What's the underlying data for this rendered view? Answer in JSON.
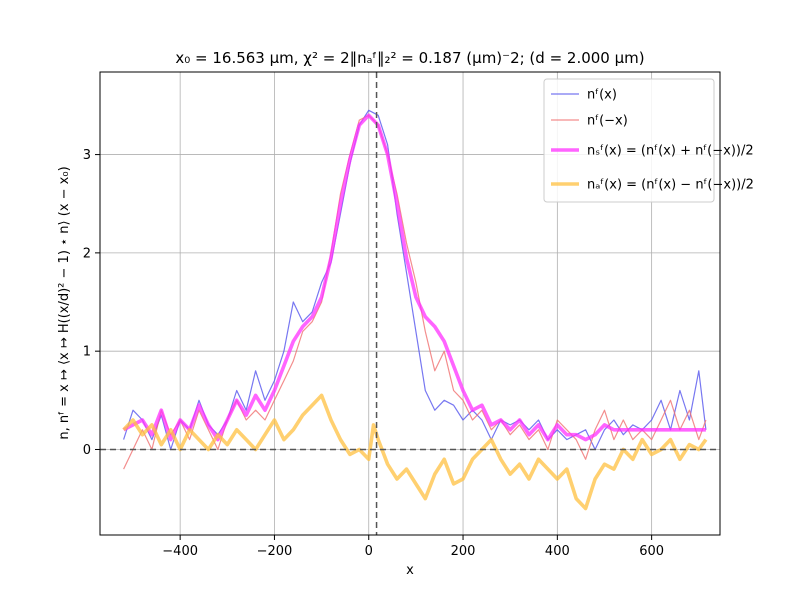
{
  "chart_data": {
    "type": "line",
    "title": "x₀ = 16.563 μm,  χ² = 2‖nₐᶠ‖₂² = 0.187 (μm)⁻2;    (d = 2.000 μm)",
    "xlabel": "x",
    "ylabel": "n,   nᶠ = x ↦ ⟨x ↦ H((x/d)² − 1) ⋆ n⟩ (x − x₀)",
    "xlim": [
      -570,
      745
    ],
    "ylim": [
      -0.87,
      3.84
    ],
    "x_ticks": [
      -400,
      -200,
      0,
      200,
      400,
      600
    ],
    "x_tick_labels": [
      "−400",
      "−200",
      "0",
      "200",
      "400",
      "600"
    ],
    "y_ticks": [
      0,
      1,
      2,
      3
    ],
    "y_tick_labels": [
      "0",
      "1",
      "2",
      "3"
    ],
    "grid": true,
    "legend_position": "top-right",
    "reference_lines": {
      "vertical_x": 16.563,
      "horizontal_y": 0
    },
    "series": [
      {
        "name": "nᶠ(x)",
        "color": "#5555ee",
        "points": [
          [
            -520,
            0.1
          ],
          [
            -500,
            0.4
          ],
          [
            -480,
            0.3
          ],
          [
            -460,
            0.1
          ],
          [
            -440,
            0.35
          ],
          [
            -420,
            0.0
          ],
          [
            -400,
            0.3
          ],
          [
            -380,
            0.2
          ],
          [
            -360,
            0.5
          ],
          [
            -340,
            0.25
          ],
          [
            -320,
            0.15
          ],
          [
            -300,
            0.3
          ],
          [
            -280,
            0.6
          ],
          [
            -260,
            0.4
          ],
          [
            -240,
            0.8
          ],
          [
            -220,
            0.5
          ],
          [
            -200,
            0.7
          ],
          [
            -180,
            1.0
          ],
          [
            -160,
            1.5
          ],
          [
            -140,
            1.3
          ],
          [
            -120,
            1.4
          ],
          [
            -100,
            1.7
          ],
          [
            -80,
            1.9
          ],
          [
            -60,
            2.4
          ],
          [
            -40,
            2.9
          ],
          [
            -20,
            3.3
          ],
          [
            0,
            3.45
          ],
          [
            20,
            3.4
          ],
          [
            40,
            3.1
          ],
          [
            60,
            2.4
          ],
          [
            80,
            1.8
          ],
          [
            100,
            1.2
          ],
          [
            120,
            0.6
          ],
          [
            140,
            0.4
          ],
          [
            160,
            0.5
          ],
          [
            180,
            0.45
          ],
          [
            200,
            0.3
          ],
          [
            220,
            0.4
          ],
          [
            240,
            0.3
          ],
          [
            260,
            0.1
          ],
          [
            280,
            0.3
          ],
          [
            300,
            0.25
          ],
          [
            320,
            0.3
          ],
          [
            340,
            0.2
          ],
          [
            360,
            0.3
          ],
          [
            380,
            0.1
          ],
          [
            400,
            0.2
          ],
          [
            420,
            0.1
          ],
          [
            440,
            0.15
          ],
          [
            460,
            0.2
          ],
          [
            480,
            0.0
          ],
          [
            500,
            0.2
          ],
          [
            520,
            0.3
          ],
          [
            540,
            0.15
          ],
          [
            560,
            0.25
          ],
          [
            580,
            0.2
          ],
          [
            600,
            0.3
          ],
          [
            620,
            0.5
          ],
          [
            640,
            0.2
          ],
          [
            660,
            0.6
          ],
          [
            680,
            0.3
          ],
          [
            700,
            0.8
          ],
          [
            715,
            0.2
          ]
        ]
      },
      {
        "name": "nᶠ(−x)",
        "color": "#f07070",
        "points": [
          [
            -520,
            -0.2
          ],
          [
            -500,
            0.0
          ],
          [
            -480,
            0.2
          ],
          [
            -460,
            0.0
          ],
          [
            -440,
            0.4
          ],
          [
            -420,
            0.15
          ],
          [
            -400,
            0.3
          ],
          [
            -380,
            0.1
          ],
          [
            -360,
            0.4
          ],
          [
            -340,
            0.2
          ],
          [
            -320,
            0.0
          ],
          [
            -300,
            0.3
          ],
          [
            -280,
            0.5
          ],
          [
            -260,
            0.3
          ],
          [
            -240,
            0.4
          ],
          [
            -220,
            0.3
          ],
          [
            -200,
            0.5
          ],
          [
            -180,
            0.7
          ],
          [
            -160,
            0.9
          ],
          [
            -140,
            1.2
          ],
          [
            -120,
            1.3
          ],
          [
            -100,
            1.5
          ],
          [
            -80,
            2.0
          ],
          [
            -60,
            2.6
          ],
          [
            -40,
            3.0
          ],
          [
            -20,
            3.35
          ],
          [
            0,
            3.4
          ],
          [
            20,
            3.3
          ],
          [
            40,
            3.0
          ],
          [
            60,
            2.6
          ],
          [
            80,
            2.1
          ],
          [
            100,
            1.7
          ],
          [
            120,
            1.2
          ],
          [
            140,
            0.8
          ],
          [
            160,
            1.0
          ],
          [
            180,
            0.6
          ],
          [
            200,
            0.5
          ],
          [
            220,
            0.3
          ],
          [
            240,
            0.4
          ],
          [
            260,
            0.2
          ],
          [
            280,
            0.3
          ],
          [
            300,
            0.15
          ],
          [
            320,
            0.25
          ],
          [
            340,
            0.1
          ],
          [
            360,
            0.2
          ],
          [
            380,
            0.0
          ],
          [
            400,
            0.3
          ],
          [
            420,
            0.2
          ],
          [
            440,
            0.1
          ],
          [
            460,
            -0.1
          ],
          [
            480,
            0.2
          ],
          [
            500,
            0.4
          ],
          [
            520,
            0.1
          ],
          [
            540,
            0.3
          ],
          [
            560,
            0.1
          ],
          [
            580,
            0.2
          ],
          [
            600,
            0.1
          ],
          [
            620,
            0.3
          ],
          [
            640,
            0.5
          ],
          [
            660,
            0.2
          ],
          [
            680,
            0.4
          ],
          [
            700,
            0.1
          ],
          [
            715,
            0.3
          ]
        ]
      },
      {
        "name": "nₛᶠ(x) = (nᶠ(x) + nᶠ(−x))/2",
        "color": "#ff30ff",
        "points": [
          [
            -520,
            0.2
          ],
          [
            -500,
            0.25
          ],
          [
            -480,
            0.3
          ],
          [
            -460,
            0.15
          ],
          [
            -440,
            0.4
          ],
          [
            -420,
            0.1
          ],
          [
            -400,
            0.3
          ],
          [
            -380,
            0.2
          ],
          [
            -360,
            0.45
          ],
          [
            -340,
            0.25
          ],
          [
            -320,
            0.1
          ],
          [
            -300,
            0.3
          ],
          [
            -280,
            0.5
          ],
          [
            -260,
            0.35
          ],
          [
            -240,
            0.55
          ],
          [
            -220,
            0.4
          ],
          [
            -200,
            0.6
          ],
          [
            -180,
            0.85
          ],
          [
            -160,
            1.1
          ],
          [
            -140,
            1.25
          ],
          [
            -120,
            1.35
          ],
          [
            -100,
            1.55
          ],
          [
            -80,
            1.95
          ],
          [
            -60,
            2.5
          ],
          [
            -40,
            2.95
          ],
          [
            -20,
            3.3
          ],
          [
            0,
            3.4
          ],
          [
            20,
            3.3
          ],
          [
            40,
            3.0
          ],
          [
            60,
            2.5
          ],
          [
            80,
            1.95
          ],
          [
            100,
            1.55
          ],
          [
            120,
            1.35
          ],
          [
            140,
            1.25
          ],
          [
            160,
            1.1
          ],
          [
            180,
            0.85
          ],
          [
            200,
            0.6
          ],
          [
            220,
            0.4
          ],
          [
            240,
            0.45
          ],
          [
            260,
            0.25
          ],
          [
            280,
            0.3
          ],
          [
            300,
            0.2
          ],
          [
            320,
            0.3
          ],
          [
            340,
            0.15
          ],
          [
            360,
            0.25
          ],
          [
            380,
            0.1
          ],
          [
            400,
            0.25
          ],
          [
            420,
            0.15
          ],
          [
            440,
            0.15
          ],
          [
            460,
            0.1
          ],
          [
            480,
            0.15
          ],
          [
            500,
            0.25
          ],
          [
            520,
            0.2
          ],
          [
            540,
            0.2
          ],
          [
            560,
            0.2
          ],
          [
            580,
            0.2
          ],
          [
            600,
            0.2
          ],
          [
            620,
            0.2
          ],
          [
            640,
            0.2
          ],
          [
            660,
            0.2
          ],
          [
            680,
            0.2
          ],
          [
            700,
            0.2
          ],
          [
            715,
            0.2
          ]
        ]
      },
      {
        "name": "nₐᶠ(x) = (nᶠ(x) − nᶠ(−x))/2",
        "color": "#ffc040",
        "points": [
          [
            -520,
            0.2
          ],
          [
            -500,
            0.3
          ],
          [
            -480,
            0.15
          ],
          [
            -460,
            0.25
          ],
          [
            -440,
            0.05
          ],
          [
            -420,
            0.2
          ],
          [
            -400,
            0.0
          ],
          [
            -380,
            0.2
          ],
          [
            -360,
            0.1
          ],
          [
            -340,
            0.0
          ],
          [
            -320,
            0.15
          ],
          [
            -300,
            0.05
          ],
          [
            -280,
            0.2
          ],
          [
            -260,
            0.1
          ],
          [
            -240,
            0.0
          ],
          [
            -220,
            0.15
          ],
          [
            -200,
            0.3
          ],
          [
            -180,
            0.1
          ],
          [
            -160,
            0.2
          ],
          [
            -140,
            0.35
          ],
          [
            -120,
            0.45
          ],
          [
            -100,
            0.55
          ],
          [
            -80,
            0.3
          ],
          [
            -60,
            0.1
          ],
          [
            -40,
            -0.05
          ],
          [
            -20,
            0.0
          ],
          [
            0,
            -0.1
          ],
          [
            10,
            0.25
          ],
          [
            20,
            0.1
          ],
          [
            40,
            -0.15
          ],
          [
            60,
            -0.3
          ],
          [
            80,
            -0.2
          ],
          [
            100,
            -0.35
          ],
          [
            120,
            -0.5
          ],
          [
            140,
            -0.25
          ],
          [
            160,
            -0.1
          ],
          [
            180,
            -0.35
          ],
          [
            200,
            -0.3
          ],
          [
            220,
            -0.1
          ],
          [
            240,
            0.0
          ],
          [
            260,
            0.1
          ],
          [
            280,
            -0.1
          ],
          [
            300,
            -0.25
          ],
          [
            320,
            -0.15
          ],
          [
            340,
            -0.3
          ],
          [
            360,
            -0.1
          ],
          [
            380,
            -0.2
          ],
          [
            400,
            -0.3
          ],
          [
            420,
            -0.2
          ],
          [
            440,
            -0.5
          ],
          [
            460,
            -0.6
          ],
          [
            480,
            -0.3
          ],
          [
            500,
            -0.15
          ],
          [
            520,
            -0.2
          ],
          [
            540,
            0.0
          ],
          [
            560,
            -0.1
          ],
          [
            580,
            0.1
          ],
          [
            600,
            -0.05
          ],
          [
            620,
            0.0
          ],
          [
            640,
            0.1
          ],
          [
            660,
            -0.1
          ],
          [
            680,
            0.05
          ],
          [
            700,
            0.0
          ],
          [
            715,
            0.1
          ]
        ]
      }
    ]
  }
}
